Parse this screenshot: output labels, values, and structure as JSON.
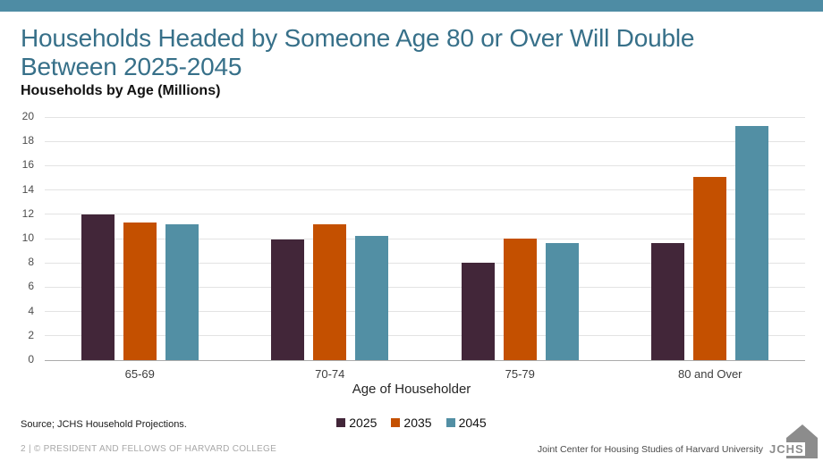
{
  "page": {
    "title_lines": [
      "Households Headed by Someone Age 80 or Over Will Double",
      "Between 2025-2045"
    ],
    "source": "Source; JCHS Household Projections.",
    "footer_left": "2 | © PRESIDENT AND FELLOWS OF HARVARD COLLEGE",
    "footer_right": "Joint Center for Housing Studies of Harvard University",
    "logo_text": "JCHS"
  },
  "colors": {
    "top_bar": "#4E8CA4",
    "title": "#377089",
    "gridline": "#E3E3E3",
    "axis_line": "#ABABAB",
    "tick_text": "#4D4D4D",
    "footer_left_text": "#A8A8A8",
    "footer_right_text": "#4A4A4A",
    "logo": "#8C8C8C"
  },
  "chart_data": {
    "type": "bar",
    "title": "Households Headed by Someone Age 80 or Over Will Double Between 2025-2045",
    "subtitle": "Households by Age (Millions)",
    "xlabel": "Age of Householder",
    "ylabel": "",
    "ylim": [
      0,
      20
    ],
    "ytick_step": 2,
    "grid": true,
    "legend_position": "bottom-center",
    "categories": [
      "65-69",
      "70-74",
      "75-79",
      "80 and Over"
    ],
    "series": [
      {
        "name": "2025",
        "color": "#422639",
        "values": [
          12.0,
          9.9,
          8.0,
          9.6
        ]
      },
      {
        "name": "2035",
        "color": "#C45000",
        "values": [
          11.3,
          11.2,
          10.0,
          15.1
        ]
      },
      {
        "name": "2045",
        "color": "#528FA4",
        "values": [
          11.2,
          10.2,
          9.6,
          19.3
        ]
      }
    ]
  }
}
